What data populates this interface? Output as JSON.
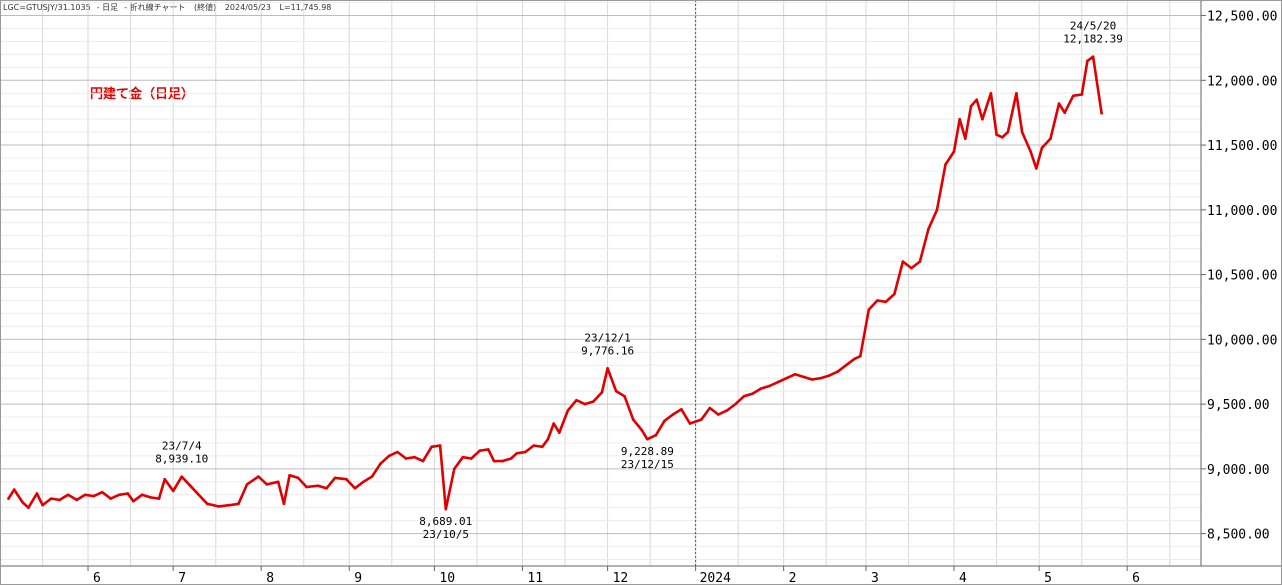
{
  "header": {
    "symbol": "LGC=GTUSJY/31.1035",
    "period": "日足",
    "chart_kind": "折れ線チャート",
    "price_kind": "(終値)",
    "date": "2024/05/23",
    "last": "L=11,745.98"
  },
  "chart_title": "円建て金（日足）",
  "colors": {
    "line": "#e00000",
    "grid": "#d8d8d8",
    "axis": "#666666",
    "text": "#000000"
  },
  "chart_data": {
    "type": "line",
    "title": "円建て金（日足）",
    "xlabel": "",
    "ylabel": "",
    "ylim": [
      8250,
      12620
    ],
    "grid": true,
    "y_ticks": [
      "8,500.00",
      "9,000.00",
      "9,500.00",
      "10,000.00",
      "10,500.00",
      "11,000.00",
      "11,500.00",
      "12,000.00",
      "12,500.00"
    ],
    "y_tick_values": [
      8500,
      9000,
      9500,
      10000,
      10500,
      11000,
      11500,
      12000,
      12500
    ],
    "x_ticks": [
      {
        "label": "6",
        "date": "2023-06-01"
      },
      {
        "label": "7",
        "date": "2023-07-01"
      },
      {
        "label": "8",
        "date": "2023-08-01"
      },
      {
        "label": "9",
        "date": "2023-09-01"
      },
      {
        "label": "10",
        "date": "2023-10-01"
      },
      {
        "label": "11",
        "date": "2023-11-01"
      },
      {
        "label": "12",
        "date": "2023-12-01"
      },
      {
        "label": "2024",
        "date": "2024-01-01"
      },
      {
        "label": "2",
        "date": "2024-02-01"
      },
      {
        "label": "3",
        "date": "2024-03-01"
      },
      {
        "label": "4",
        "date": "2024-04-01"
      },
      {
        "label": "5",
        "date": "2024-05-01"
      },
      {
        "label": "6",
        "date": "2024-06-01"
      }
    ],
    "year_divider_date": "2024-01-01",
    "series": [
      {
        "name": "",
        "points": [
          [
            "2023-05-04",
            8770
          ],
          [
            "2023-05-06",
            8840
          ],
          [
            "2023-05-09",
            8740
          ],
          [
            "2023-05-11",
            8700
          ],
          [
            "2023-05-14",
            8810
          ],
          [
            "2023-05-16",
            8720
          ],
          [
            "2023-05-19",
            8770
          ],
          [
            "2023-05-22",
            8760
          ],
          [
            "2023-05-25",
            8800
          ],
          [
            "2023-05-28",
            8760
          ],
          [
            "2023-05-31",
            8800
          ],
          [
            "2023-06-03",
            8790
          ],
          [
            "2023-06-06",
            8820
          ],
          [
            "2023-06-09",
            8770
          ],
          [
            "2023-06-12",
            8800
          ],
          [
            "2023-06-15",
            8810
          ],
          [
            "2023-06-17",
            8750
          ],
          [
            "2023-06-20",
            8800
          ],
          [
            "2023-06-23",
            8780
          ],
          [
            "2023-06-26",
            8770
          ],
          [
            "2023-06-28",
            8920
          ],
          [
            "2023-06-30",
            8860
          ],
          [
            "2023-07-01",
            8830
          ],
          [
            "2023-07-04",
            8939.1
          ],
          [
            "2023-07-07",
            8870
          ],
          [
            "2023-07-10",
            8800
          ],
          [
            "2023-07-13",
            8730
          ],
          [
            "2023-07-17",
            8710
          ],
          [
            "2023-07-21",
            8720
          ],
          [
            "2023-07-24",
            8730
          ],
          [
            "2023-07-27",
            8880
          ],
          [
            "2023-07-31",
            8940
          ],
          [
            "2023-08-03",
            8880
          ],
          [
            "2023-08-07",
            8900
          ],
          [
            "2023-08-09",
            8730
          ],
          [
            "2023-08-11",
            8950
          ],
          [
            "2023-08-14",
            8930
          ],
          [
            "2023-08-17",
            8860
          ],
          [
            "2023-08-21",
            8870
          ],
          [
            "2023-08-24",
            8850
          ],
          [
            "2023-08-27",
            8930
          ],
          [
            "2023-08-31",
            8920
          ],
          [
            "2023-09-03",
            8850
          ],
          [
            "2023-09-06",
            8900
          ],
          [
            "2023-09-09",
            8940
          ],
          [
            "2023-09-12",
            9040
          ],
          [
            "2023-09-15",
            9100
          ],
          [
            "2023-09-18",
            9130
          ],
          [
            "2023-09-21",
            9080
          ],
          [
            "2023-09-24",
            9090
          ],
          [
            "2023-09-27",
            9060
          ],
          [
            "2023-09-30",
            9170
          ],
          [
            "2023-10-03",
            9180
          ],
          [
            "2023-10-05",
            8689.01
          ],
          [
            "2023-10-08",
            9000
          ],
          [
            "2023-10-11",
            9090
          ],
          [
            "2023-10-14",
            9080
          ],
          [
            "2023-10-17",
            9140
          ],
          [
            "2023-10-20",
            9150
          ],
          [
            "2023-10-22",
            9060
          ],
          [
            "2023-10-25",
            9060
          ],
          [
            "2023-10-28",
            9080
          ],
          [
            "2023-10-30",
            9120
          ],
          [
            "2023-11-02",
            9130
          ],
          [
            "2023-11-05",
            9180
          ],
          [
            "2023-11-08",
            9170
          ],
          [
            "2023-11-10",
            9230
          ],
          [
            "2023-11-12",
            9350
          ],
          [
            "2023-11-14",
            9280
          ],
          [
            "2023-11-17",
            9450
          ],
          [
            "2023-11-20",
            9530
          ],
          [
            "2023-11-23",
            9500
          ],
          [
            "2023-11-26",
            9520
          ],
          [
            "2023-11-29",
            9590
          ],
          [
            "2023-12-01",
            9776.16
          ],
          [
            "2023-12-04",
            9600
          ],
          [
            "2023-12-07",
            9560
          ],
          [
            "2023-12-10",
            9380
          ],
          [
            "2023-12-13",
            9300
          ],
          [
            "2023-12-15",
            9228.89
          ],
          [
            "2023-12-18",
            9260
          ],
          [
            "2023-12-21",
            9370
          ],
          [
            "2023-12-24",
            9420
          ],
          [
            "2023-12-27",
            9460
          ],
          [
            "2023-12-30",
            9350
          ],
          [
            "2024-01-03",
            9380
          ],
          [
            "2024-01-06",
            9470
          ],
          [
            "2024-01-09",
            9420
          ],
          [
            "2024-01-12",
            9450
          ],
          [
            "2024-01-15",
            9500
          ],
          [
            "2024-01-18",
            9560
          ],
          [
            "2024-01-21",
            9580
          ],
          [
            "2024-01-24",
            9620
          ],
          [
            "2024-01-27",
            9640
          ],
          [
            "2024-01-30",
            9670
          ],
          [
            "2024-02-02",
            9700
          ],
          [
            "2024-02-05",
            9730
          ],
          [
            "2024-02-08",
            9710
          ],
          [
            "2024-02-11",
            9690
          ],
          [
            "2024-02-14",
            9700
          ],
          [
            "2024-02-17",
            9720
          ],
          [
            "2024-02-20",
            9750
          ],
          [
            "2024-02-23",
            9800
          ],
          [
            "2024-02-26",
            9850
          ],
          [
            "2024-02-28",
            9870
          ],
          [
            "2024-03-02",
            10230
          ],
          [
            "2024-03-05",
            10300
          ],
          [
            "2024-03-08",
            10290
          ],
          [
            "2024-03-11",
            10350
          ],
          [
            "2024-03-14",
            10600
          ],
          [
            "2024-03-17",
            10550
          ],
          [
            "2024-03-20",
            10600
          ],
          [
            "2024-03-23",
            10850
          ],
          [
            "2024-03-26",
            11000
          ],
          [
            "2024-03-29",
            11350
          ],
          [
            "2024-04-01",
            11450
          ],
          [
            "2024-04-03",
            11700
          ],
          [
            "2024-04-05",
            11550
          ],
          [
            "2024-04-07",
            11800
          ],
          [
            "2024-04-09",
            11850
          ],
          [
            "2024-04-11",
            11700
          ],
          [
            "2024-04-14",
            11900
          ],
          [
            "2024-04-16",
            11580
          ],
          [
            "2024-04-18",
            11560
          ],
          [
            "2024-04-20",
            11600
          ],
          [
            "2024-04-23",
            11900
          ],
          [
            "2024-04-25",
            11600
          ],
          [
            "2024-04-28",
            11450
          ],
          [
            "2024-04-30",
            11320
          ],
          [
            "2024-05-02",
            11480
          ],
          [
            "2024-05-05",
            11550
          ],
          [
            "2024-05-08",
            11820
          ],
          [
            "2024-05-10",
            11750
          ],
          [
            "2024-05-13",
            11880
          ],
          [
            "2024-05-16",
            11890
          ],
          [
            "2024-05-18",
            12150
          ],
          [
            "2024-05-20",
            12182.39
          ],
          [
            "2024-05-23",
            11745.98
          ]
        ]
      }
    ],
    "annotations": [
      {
        "date_label": "23/7/4",
        "value_label": "8,939.10",
        "x": "2023-07-04",
        "y": 8939.1,
        "position": "above"
      },
      {
        "date_label": "23/10/5",
        "value_label": "8,689.01",
        "x": "2023-10-05",
        "y": 8689.01,
        "position": "below"
      },
      {
        "date_label": "23/12/1",
        "value_label": "9,776.16",
        "x": "2023-12-01",
        "y": 9776.16,
        "position": "above"
      },
      {
        "date_label": "23/12/15",
        "value_label": "9,228.89",
        "x": "2023-12-15",
        "y": 9228.89,
        "position": "below"
      },
      {
        "date_label": "24/5/20",
        "value_label": "12,182.39",
        "x": "2024-05-20",
        "y": 12182.39,
        "position": "above"
      }
    ]
  }
}
